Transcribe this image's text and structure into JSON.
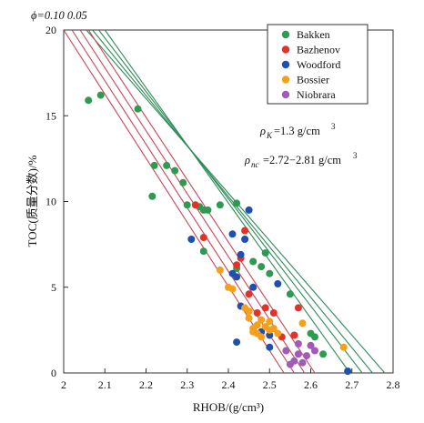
{
  "chart_data": {
    "type": "scatter",
    "xlabel": "RHOB/(g/cm³)",
    "ylabel": "TOC(质量分数)/%",
    "xlim": [
      2.0,
      2.8
    ],
    "ylim": [
      0,
      20
    ],
    "xticks": [
      "2",
      "2.1",
      "2.2",
      "2.3",
      "2.4",
      "2.5",
      "2.6",
      "2.7",
      "2.8"
    ],
    "yticks": [
      "0",
      "5",
      "10",
      "15",
      "20"
    ],
    "grid": false,
    "legend_position": "top-right",
    "phi_label": "ϕ=0.10 0.05",
    "annotations": {
      "rho_k": "ρK=1.3 g/cm³",
      "rho_nc": "ρnc=2.72−2.81 g/cm³"
    },
    "colors": {
      "green_lines": "#2e8b57",
      "red_lines": "#cc4455"
    },
    "model_lines": [
      {
        "group": "green",
        "x_top": 2.055,
        "x_bottom": 2.78
      },
      {
        "group": "green",
        "x_top": 2.07,
        "x_bottom": 2.75
      },
      {
        "group": "green",
        "x_top": 2.085,
        "x_bottom": 2.725
      },
      {
        "group": "green",
        "x_top": 2.1,
        "x_bottom": 2.695
      },
      {
        "group": "red",
        "x_top": 2.0,
        "x_bottom": 2.535
      },
      {
        "group": "red",
        "x_top": 2.02,
        "x_bottom": 2.56
      },
      {
        "group": "red",
        "x_top": 2.04,
        "x_bottom": 2.585
      },
      {
        "group": "red",
        "x_top": 2.06,
        "x_bottom": 2.61
      }
    ],
    "series": [
      {
        "name": "Bakken",
        "color": "#2e9a52",
        "points": [
          [
            2.06,
            15.9
          ],
          [
            2.09,
            16.2
          ],
          [
            2.18,
            15.4
          ],
          [
            2.215,
            10.3
          ],
          [
            2.22,
            12.1
          ],
          [
            2.25,
            12.1
          ],
          [
            2.27,
            11.8
          ],
          [
            2.29,
            11.1
          ],
          [
            2.3,
            9.8
          ],
          [
            2.33,
            9.7
          ],
          [
            2.34,
            9.5
          ],
          [
            2.35,
            9.5
          ],
          [
            2.38,
            9.8
          ],
          [
            2.42,
            9.9
          ],
          [
            2.34,
            7.1
          ],
          [
            2.42,
            6.1
          ],
          [
            2.46,
            6.5
          ],
          [
            2.48,
            6.2
          ],
          [
            2.49,
            7.0
          ],
          [
            2.5,
            5.8
          ],
          [
            2.55,
            4.6
          ],
          [
            2.6,
            2.3
          ],
          [
            2.61,
            2.1
          ],
          [
            2.63,
            1.1
          ],
          [
            2.69,
            0.1
          ]
        ]
      },
      {
        "name": "Bazhenov",
        "color": "#e0332a",
        "points": [
          [
            2.32,
            9.8
          ],
          [
            2.34,
            7.9
          ],
          [
            2.42,
            6.3
          ],
          [
            2.43,
            6.7
          ],
          [
            2.44,
            8.3
          ],
          [
            2.45,
            4.6
          ],
          [
            2.47,
            3.5
          ],
          [
            2.49,
            3.8
          ],
          [
            2.51,
            3.5
          ],
          [
            2.53,
            2.1
          ],
          [
            2.56,
            2.2
          ],
          [
            2.57,
            3.8
          ]
        ]
      },
      {
        "name": "Woodford",
        "color": "#1f4fb0",
        "points": [
          [
            2.31,
            7.8
          ],
          [
            2.41,
            5.8
          ],
          [
            2.42,
            5.6
          ],
          [
            2.41,
            8.1
          ],
          [
            2.43,
            6.9
          ],
          [
            2.44,
            7.8
          ],
          [
            2.45,
            9.5
          ],
          [
            2.46,
            5.0
          ],
          [
            2.43,
            3.9
          ],
          [
            2.42,
            1.8
          ],
          [
            2.48,
            2.4
          ],
          [
            2.5,
            2.2
          ],
          [
            2.5,
            1.5
          ],
          [
            2.52,
            5.2
          ],
          [
            2.69,
            0.1
          ]
        ]
      },
      {
        "name": "Bossier",
        "color": "#f4a01d",
        "points": [
          [
            2.38,
            6.0
          ],
          [
            2.4,
            5.0
          ],
          [
            2.41,
            4.9
          ],
          [
            2.44,
            3.8
          ],
          [
            2.45,
            3.6
          ],
          [
            2.45,
            3.2
          ],
          [
            2.46,
            2.6
          ],
          [
            2.46,
            2.4
          ],
          [
            2.47,
            2.8
          ],
          [
            2.47,
            2.3
          ],
          [
            2.48,
            3.1
          ],
          [
            2.48,
            2.1
          ],
          [
            2.49,
            2.7
          ],
          [
            2.5,
            3.0
          ],
          [
            2.5,
            2.5
          ],
          [
            2.51,
            2.6
          ],
          [
            2.52,
            2.3
          ],
          [
            2.58,
            2.9
          ],
          [
            2.68,
            1.5
          ]
        ]
      },
      {
        "name": "Niobrara",
        "color": "#a05ab8",
        "points": [
          [
            2.54,
            1.3
          ],
          [
            2.55,
            0.5
          ],
          [
            2.56,
            0.7
          ],
          [
            2.57,
            1.7
          ],
          [
            2.57,
            1.1
          ],
          [
            2.58,
            0.6
          ],
          [
            2.59,
            1.0
          ],
          [
            2.6,
            1.6
          ],
          [
            2.61,
            1.3
          ]
        ]
      }
    ]
  }
}
